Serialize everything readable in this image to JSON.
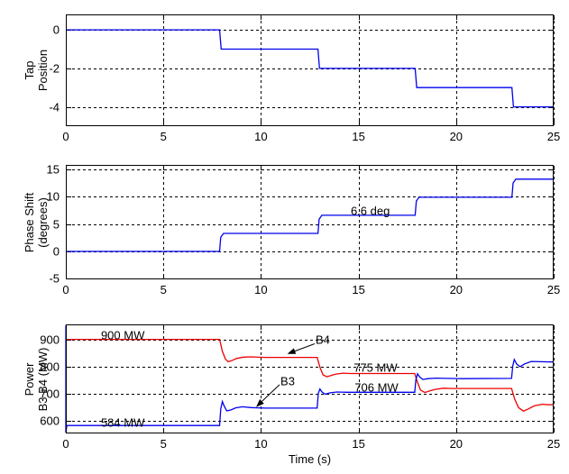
{
  "figure": {
    "background": "#ffffff",
    "text_color": "#000000",
    "grid_color": "#000000",
    "axis_color": "#000000"
  },
  "chart_data": [
    {
      "id": "tap",
      "type": "line",
      "title": "",
      "ylabel_lines": [
        "Tap",
        "Position"
      ],
      "xlabel": "",
      "xlim": [
        0,
        25
      ],
      "ylim": [
        -5,
        0.8
      ],
      "xticks": [
        0,
        5,
        10,
        15,
        20,
        25
      ],
      "yticks": [
        0,
        -2,
        -4
      ],
      "grid": true,
      "series": [
        {
          "name": "tap-position",
          "color": "#0000ee",
          "points": [
            [
              0,
              0
            ],
            [
              7.88,
              0
            ],
            [
              7.96,
              -1
            ],
            [
              12.92,
              -1
            ],
            [
              13.0,
              -2
            ],
            [
              17.9,
              -2
            ],
            [
              17.98,
              -3
            ],
            [
              22.86,
              -3
            ],
            [
              22.94,
              -4
            ],
            [
              25,
              -4
            ]
          ]
        }
      ],
      "annotations": []
    },
    {
      "id": "phase",
      "type": "line",
      "title": "",
      "ylabel_lines": [
        "Phase Shift",
        "(degrees)"
      ],
      "xlabel": "",
      "xlim": [
        0,
        25
      ],
      "ylim": [
        -5.1,
        15.8
      ],
      "xticks": [
        0,
        5,
        10,
        15,
        20,
        25
      ],
      "yticks": [
        15,
        10,
        5,
        0,
        -5
      ],
      "grid": true,
      "series": [
        {
          "name": "phase-shift",
          "color": "#0000ee",
          "points": [
            [
              0,
              0
            ],
            [
              7.88,
              0
            ],
            [
              7.94,
              2.6
            ],
            [
              8.08,
              3.3
            ],
            [
              12.92,
              3.3
            ],
            [
              12.98,
              5.9
            ],
            [
              13.12,
              6.6
            ],
            [
              17.9,
              6.6
            ],
            [
              17.96,
              9.2
            ],
            [
              18.1,
              9.9
            ],
            [
              22.86,
              9.9
            ],
            [
              22.92,
              12.5
            ],
            [
              23.06,
              13.2
            ],
            [
              25,
              13.2
            ]
          ]
        }
      ],
      "annotations": [
        {
          "label": "6.6 deg",
          "t": 14.6,
          "v": 7.35
        }
      ]
    },
    {
      "id": "power",
      "type": "line",
      "title": "",
      "ylabel_lines": [
        "Power",
        "B3 B4 (MW)"
      ],
      "xlabel": "Time (s)",
      "xlim": [
        0,
        25
      ],
      "ylim": [
        555,
        955
      ],
      "xticks": [
        0,
        5,
        10,
        15,
        20,
        25
      ],
      "yticks": [
        900,
        800,
        700,
        600
      ],
      "grid": true,
      "series": [
        {
          "name": "power-b4",
          "color": "#ee0000",
          "points": [
            [
              0,
              900
            ],
            [
              7.88,
              900
            ],
            [
              8.02,
              856
            ],
            [
              8.18,
              828
            ],
            [
              8.32,
              818
            ],
            [
              8.5,
              822
            ],
            [
              8.75,
              830
            ],
            [
              9.1,
              835
            ],
            [
              9.5,
              836
            ],
            [
              10.2,
              834
            ],
            [
              12.88,
              834
            ],
            [
              13.02,
              798
            ],
            [
              13.18,
              770
            ],
            [
              13.38,
              763
            ],
            [
              13.6,
              768
            ],
            [
              13.85,
              773
            ],
            [
              14.2,
              776
            ],
            [
              14.6,
              775
            ],
            [
              17.88,
              775
            ],
            [
              18.02,
              742
            ],
            [
              18.18,
              714
            ],
            [
              18.4,
              705
            ],
            [
              18.65,
              711
            ],
            [
              18.95,
              717
            ],
            [
              19.35,
              721
            ],
            [
              19.8,
              720
            ],
            [
              22.84,
              720
            ],
            [
              23.0,
              682
            ],
            [
              23.2,
              650
            ],
            [
              23.45,
              637
            ],
            [
              23.7,
              645
            ],
            [
              24.0,
              656
            ],
            [
              24.4,
              662
            ],
            [
              24.8,
              660
            ],
            [
              25,
              661
            ]
          ]
        },
        {
          "name": "power-b3",
          "color": "#0000ee",
          "points": [
            [
              0,
              952
            ],
            [
              0,
              558
            ],
            [
              0.05,
              584
            ],
            [
              7.88,
              584
            ],
            [
              7.94,
              645
            ],
            [
              8.02,
              672
            ],
            [
              8.12,
              655
            ],
            [
              8.25,
              638
            ],
            [
              8.45,
              641
            ],
            [
              8.7,
              649
            ],
            [
              9.05,
              653
            ],
            [
              9.5,
              650
            ],
            [
              10.2,
              648
            ],
            [
              12.88,
              648
            ],
            [
              12.94,
              702
            ],
            [
              13.02,
              718
            ],
            [
              13.14,
              706
            ],
            [
              13.3,
              699
            ],
            [
              13.55,
              704
            ],
            [
              13.9,
              707
            ],
            [
              14.4,
              706
            ],
            [
              17.88,
              706
            ],
            [
              17.94,
              752
            ],
            [
              18.02,
              774
            ],
            [
              18.14,
              762
            ],
            [
              18.3,
              753
            ],
            [
              18.55,
              756
            ],
            [
              18.95,
              758
            ],
            [
              19.5,
              757
            ],
            [
              20.3,
              756
            ],
            [
              22.84,
              757
            ],
            [
              22.9,
              802
            ],
            [
              22.98,
              826
            ],
            [
              23.1,
              810
            ],
            [
              23.28,
              800
            ],
            [
              23.5,
              810
            ],
            [
              23.85,
              819
            ],
            [
              24.3,
              818
            ],
            [
              25,
              817
            ]
          ]
        }
      ],
      "annotations": [
        {
          "label": "900 MW",
          "t": 1.8,
          "v": 916
        },
        {
          "label": "584 MW",
          "t": 1.8,
          "v": 596
        },
        {
          "label": "B4",
          "t": 12.8,
          "v": 900,
          "arrow": {
            "from_t": 12.75,
            "from_v": 884,
            "to_t": 11.35,
            "to_v": 847
          }
        },
        {
          "label": "B3",
          "t": 11.0,
          "v": 746,
          "arrow": {
            "from_t": 10.95,
            "from_v": 734,
            "to_t": 9.75,
            "to_v": 652
          }
        },
        {
          "label": "775 MW",
          "t": 14.75,
          "v": 797
        },
        {
          "label": "706 MW",
          "t": 14.8,
          "v": 724
        }
      ]
    }
  ]
}
